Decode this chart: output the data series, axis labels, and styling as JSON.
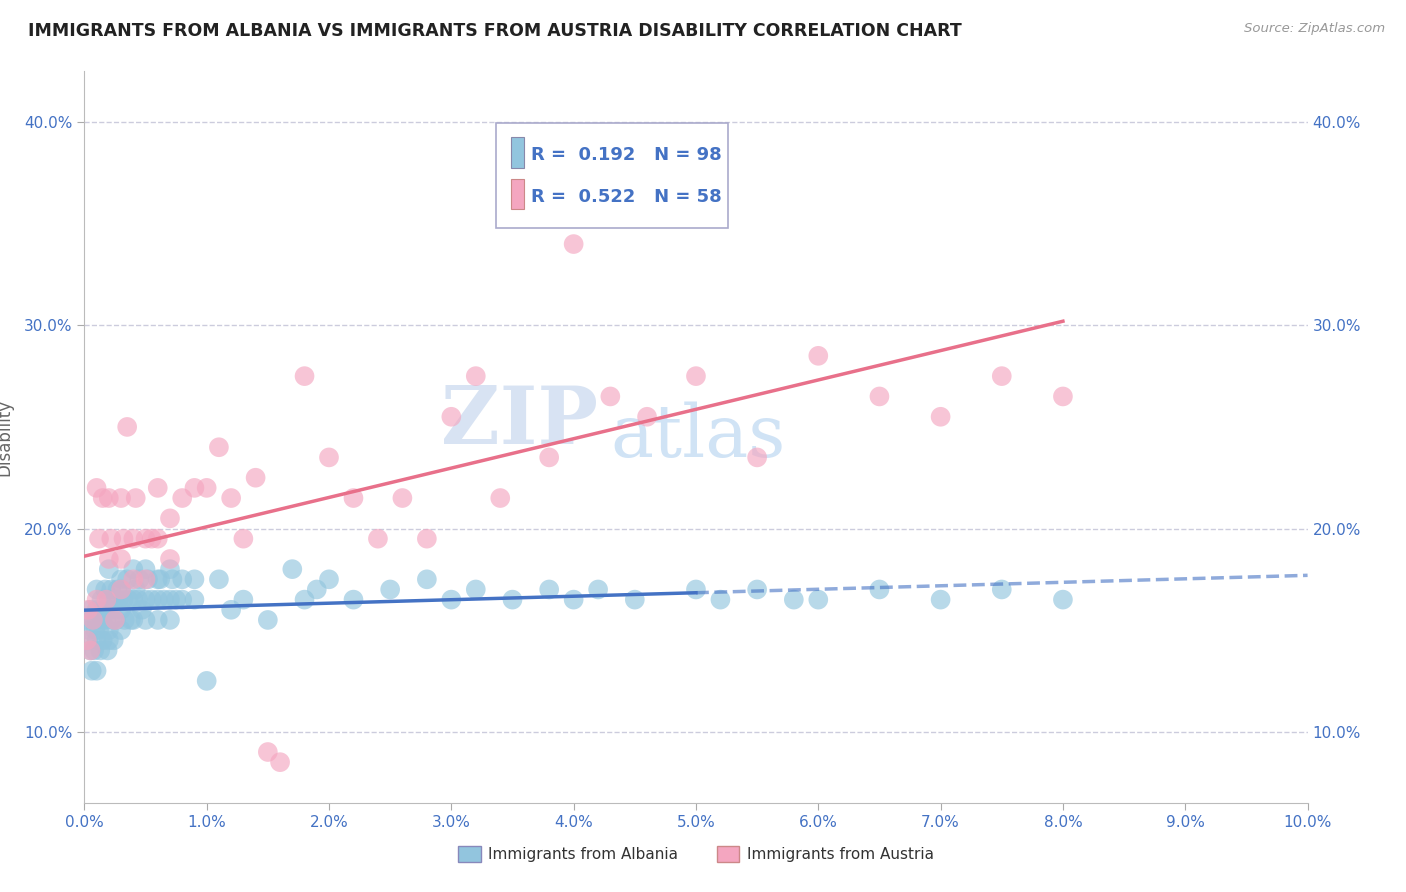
{
  "title": "IMMIGRANTS FROM ALBANIA VS IMMIGRANTS FROM AUSTRIA DISABILITY CORRELATION CHART",
  "source": "Source: ZipAtlas.com",
  "ylabel": "Disability",
  "xlim": [
    0.0,
    0.1
  ],
  "ylim": [
    0.065,
    0.425
  ],
  "xticks": [
    0.0,
    0.01,
    0.02,
    0.03,
    0.04,
    0.05,
    0.06,
    0.07,
    0.08,
    0.09,
    0.1
  ],
  "yticks": [
    0.1,
    0.2,
    0.3,
    0.4
  ],
  "albania_color": "#92c5de",
  "austria_color": "#f4a6c0",
  "albania_R": 0.192,
  "albania_N": 98,
  "austria_R": 0.522,
  "austria_N": 58,
  "albania_line_color": "#4472c4",
  "austria_line_color": "#e8708a",
  "watermark_color": "#dde8f5",
  "albania_x": [
    0.0002,
    0.0003,
    0.0004,
    0.0005,
    0.0005,
    0.0006,
    0.0007,
    0.0008,
    0.0009,
    0.001,
    0.001,
    0.001,
    0.001,
    0.001,
    0.0012,
    0.0013,
    0.0014,
    0.0015,
    0.0015,
    0.0016,
    0.0017,
    0.0018,
    0.0019,
    0.002,
    0.002,
    0.002,
    0.002,
    0.0021,
    0.0022,
    0.0023,
    0.0024,
    0.0025,
    0.0026,
    0.0027,
    0.0028,
    0.003,
    0.003,
    0.003,
    0.003,
    0.0032,
    0.0033,
    0.0035,
    0.0036,
    0.0038,
    0.004,
    0.004,
    0.004,
    0.0042,
    0.0044,
    0.0045,
    0.0047,
    0.005,
    0.005,
    0.005,
    0.0052,
    0.0055,
    0.006,
    0.006,
    0.006,
    0.0062,
    0.0065,
    0.007,
    0.007,
    0.007,
    0.0072,
    0.0075,
    0.008,
    0.008,
    0.009,
    0.009,
    0.01,
    0.011,
    0.012,
    0.013,
    0.015,
    0.017,
    0.018,
    0.019,
    0.02,
    0.022,
    0.025,
    0.028,
    0.03,
    0.032,
    0.035,
    0.038,
    0.04,
    0.042,
    0.045,
    0.05,
    0.052,
    0.055,
    0.058,
    0.06,
    0.065,
    0.07,
    0.075,
    0.08
  ],
  "albania_y": [
    0.155,
    0.145,
    0.15,
    0.14,
    0.16,
    0.13,
    0.155,
    0.14,
    0.15,
    0.145,
    0.13,
    0.16,
    0.17,
    0.155,
    0.15,
    0.14,
    0.165,
    0.155,
    0.145,
    0.16,
    0.17,
    0.155,
    0.14,
    0.165,
    0.18,
    0.15,
    0.145,
    0.16,
    0.17,
    0.155,
    0.145,
    0.165,
    0.155,
    0.17,
    0.165,
    0.175,
    0.16,
    0.15,
    0.17,
    0.165,
    0.155,
    0.175,
    0.165,
    0.155,
    0.18,
    0.165,
    0.155,
    0.17,
    0.165,
    0.175,
    0.16,
    0.18,
    0.165,
    0.155,
    0.175,
    0.165,
    0.175,
    0.165,
    0.155,
    0.175,
    0.165,
    0.18,
    0.165,
    0.155,
    0.175,
    0.165,
    0.175,
    0.165,
    0.175,
    0.165,
    0.125,
    0.175,
    0.16,
    0.165,
    0.155,
    0.18,
    0.165,
    0.17,
    0.175,
    0.165,
    0.17,
    0.175,
    0.165,
    0.17,
    0.165,
    0.17,
    0.165,
    0.17,
    0.165,
    0.17,
    0.165,
    0.17,
    0.165,
    0.165,
    0.17,
    0.165,
    0.17,
    0.165
  ],
  "austria_x": [
    0.0002,
    0.0003,
    0.0005,
    0.0007,
    0.001,
    0.001,
    0.0012,
    0.0015,
    0.0018,
    0.002,
    0.002,
    0.0022,
    0.0025,
    0.003,
    0.003,
    0.003,
    0.0032,
    0.0035,
    0.004,
    0.004,
    0.0042,
    0.005,
    0.005,
    0.0055,
    0.006,
    0.006,
    0.007,
    0.007,
    0.008,
    0.009,
    0.01,
    0.011,
    0.012,
    0.013,
    0.014,
    0.015,
    0.016,
    0.018,
    0.02,
    0.022,
    0.024,
    0.026,
    0.028,
    0.03,
    0.032,
    0.034,
    0.036,
    0.038,
    0.04,
    0.043,
    0.046,
    0.05,
    0.055,
    0.06,
    0.065,
    0.07,
    0.075,
    0.08
  ],
  "austria_y": [
    0.145,
    0.16,
    0.14,
    0.155,
    0.22,
    0.165,
    0.195,
    0.215,
    0.165,
    0.185,
    0.215,
    0.195,
    0.155,
    0.215,
    0.185,
    0.17,
    0.195,
    0.25,
    0.195,
    0.175,
    0.215,
    0.195,
    0.175,
    0.195,
    0.22,
    0.195,
    0.205,
    0.185,
    0.215,
    0.22,
    0.22,
    0.24,
    0.215,
    0.195,
    0.225,
    0.09,
    0.085,
    0.275,
    0.235,
    0.215,
    0.195,
    0.215,
    0.195,
    0.255,
    0.275,
    0.215,
    0.37,
    0.235,
    0.34,
    0.265,
    0.255,
    0.275,
    0.235,
    0.285,
    0.265,
    0.255,
    0.275,
    0.265
  ]
}
